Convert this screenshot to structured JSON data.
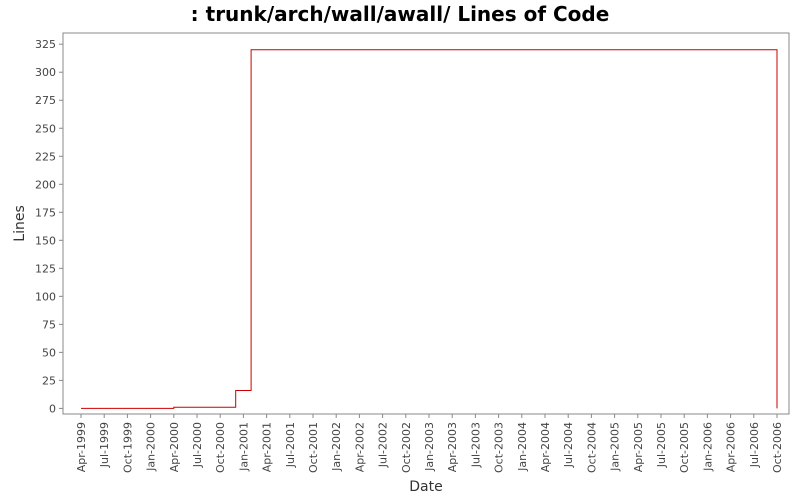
{
  "chart_data": {
    "type": "line",
    "title": ": trunk/arch/wall/awall/ Lines of Code",
    "xlabel": "Date",
    "ylabel": "Lines",
    "ylim": [
      -5,
      335
    ],
    "yticks": [
      0,
      25,
      50,
      75,
      100,
      125,
      150,
      175,
      200,
      225,
      250,
      275,
      300,
      325
    ],
    "x_tick_labels": [
      "Apr-1999",
      "Jul-1999",
      "Oct-1999",
      "Jan-2000",
      "Apr-2000",
      "Jul-2000",
      "Oct-2000",
      "Jan-2001",
      "Apr-2001",
      "Jul-2001",
      "Oct-2001",
      "Jan-2002",
      "Apr-2002",
      "Jul-2002",
      "Oct-2002",
      "Jan-2003",
      "Apr-2003",
      "Jul-2003",
      "Oct-2003",
      "Jan-2004",
      "Apr-2004",
      "Jul-2004",
      "Oct-2004",
      "Jan-2005",
      "Apr-2005",
      "Jul-2005",
      "Oct-2005",
      "Jan-2006",
      "Apr-2006",
      "Jul-2006",
      "Oct-2006"
    ],
    "step": true,
    "line_color": "#cc0000",
    "grid": false,
    "series": [
      {
        "points": [
          [
            "Apr-1999",
            0
          ],
          [
            "Apr-2000",
            0
          ],
          [
            "Apr-2000",
            1
          ],
          [
            "Dec-2000",
            1
          ],
          [
            "Dec-2000",
            16
          ],
          [
            "Feb-2001",
            16
          ],
          [
            "Feb-2001",
            320
          ],
          [
            "Oct-2006",
            320
          ],
          [
            "Oct-2006",
            0
          ]
        ]
      }
    ]
  }
}
